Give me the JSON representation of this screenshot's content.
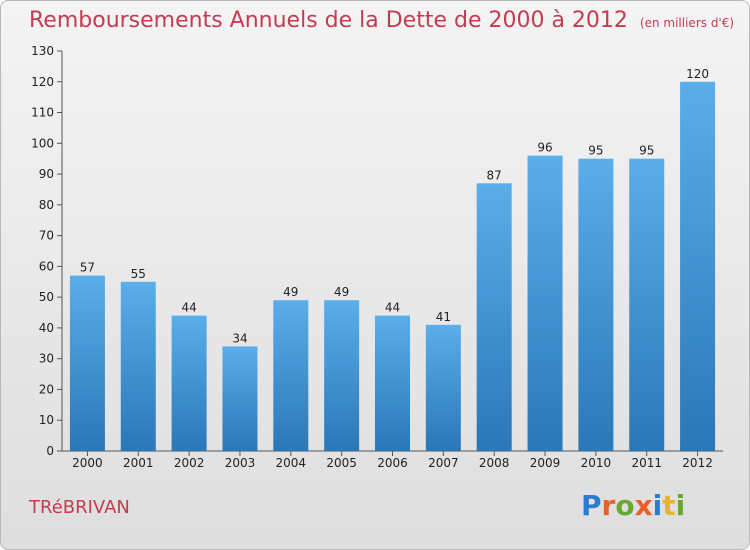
{
  "header": {
    "title": "Remboursements Annuels de la Dette de 2000 à 2012",
    "unit": "(en milliers d'€)"
  },
  "footer": {
    "commune": "TRéBRIVAN",
    "logo": [
      "P",
      "r",
      "o",
      "x",
      "i",
      "t",
      "i"
    ],
    "logo_colors": [
      "#2b7bd1",
      "#e8612c",
      "#6aa832",
      "#e8612c",
      "#2b7bd1",
      "#e2b82b",
      "#6aa832"
    ]
  },
  "colors": {
    "bar_top": "#5aaeea",
    "bar_bottom": "#2a77b8",
    "title": "#c43b52"
  },
  "chart_data": {
    "type": "bar",
    "categories": [
      "2000",
      "2001",
      "2002",
      "2003",
      "2004",
      "2005",
      "2006",
      "2007",
      "2008",
      "2009",
      "2010",
      "2011",
      "2012"
    ],
    "values": [
      57,
      55,
      44,
      34,
      49,
      49,
      44,
      41,
      87,
      96,
      95,
      95,
      120
    ],
    "ylim": [
      0,
      130
    ],
    "yticks": [
      0,
      10,
      20,
      30,
      40,
      50,
      60,
      70,
      80,
      90,
      100,
      110,
      120,
      130
    ],
    "grid": false,
    "data_labels": true
  }
}
